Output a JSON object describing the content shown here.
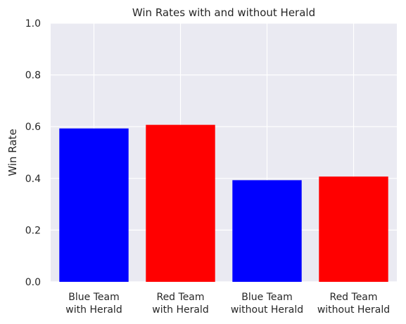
{
  "chart_data": {
    "type": "bar",
    "title": "Win Rates with and without Herald",
    "xlabel": "",
    "ylabel": "Win Rate",
    "ylim": [
      0,
      1
    ],
    "yticks": [
      "0.0",
      "0.2",
      "0.4",
      "0.6",
      "0.8",
      "1.0"
    ],
    "categories": [
      [
        "Blue Team",
        "with Herald"
      ],
      [
        "Red Team",
        "with Herald"
      ],
      [
        "Blue Team",
        "without Herald"
      ],
      [
        "Red Team",
        "without Herald"
      ]
    ],
    "values": [
      0.593,
      0.607,
      0.393,
      0.407
    ],
    "bar_colors": [
      "#0000ff",
      "#ff0000",
      "#0000ff",
      "#ff0000"
    ],
    "grid": true,
    "background_color": "#eaeaf2",
    "grid_color": "#ffffff"
  }
}
